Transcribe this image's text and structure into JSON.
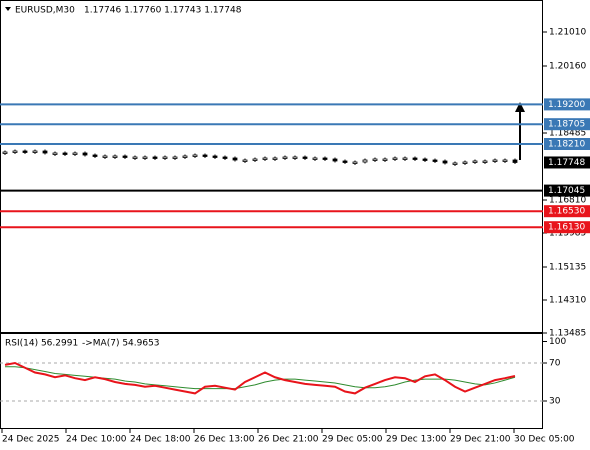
{
  "chart_data": {
    "type": "candlestick",
    "title": "EURUSD,M30",
    "ohlc": "1.17746 1.17760 1.17743 1.17748",
    "ylim": [
      1.1345,
      1.2181
    ],
    "yticks": [
      {
        "value": 1.2101,
        "label": "1.21010"
      },
      {
        "value": 1.2016,
        "label": "1.20160"
      },
      {
        "value": 1.18485,
        "label": "1.18485"
      },
      {
        "value": 1.1681,
        "label": "1.16810"
      },
      {
        "value": 1.15985,
        "label": "1.15985"
      },
      {
        "value": 1.15135,
        "label": "1.15135"
      },
      {
        "value": 1.1431,
        "label": "1.14310"
      },
      {
        "value": 1.13485,
        "label": "1.13485"
      }
    ],
    "levels": [
      {
        "value": 1.192,
        "label": "1.19200",
        "color": "#3a78b5"
      },
      {
        "value": 1.18705,
        "label": "1.18705",
        "color": "#3a78b5"
      },
      {
        "value": 1.1821,
        "label": "1.18210",
        "color": "#3a78b5"
      },
      {
        "value": 1.17045,
        "label": "1.17045",
        "color": "#000000"
      },
      {
        "value": 1.1653,
        "label": "1.16530",
        "color": "#e8141b"
      },
      {
        "value": 1.1613,
        "label": "1.16130",
        "color": "#e8141b"
      }
    ],
    "last_price": {
      "value": 1.17748,
      "label": "1.17748"
    },
    "close": [
      1.1801,
      1.18035,
      1.1801,
      1.18035,
      1.17985,
      1.17985,
      1.1796,
      1.17985,
      1.17935,
      1.1791,
      1.1791,
      1.1791,
      1.17885,
      1.17885,
      1.17885,
      1.1786,
      1.17885,
      1.17885,
      1.1791,
      1.17935,
      1.1791,
      1.17885,
      1.1786,
      1.1781,
      1.1781,
      1.17835,
      1.1786,
      1.1786,
      1.17885,
      1.17885,
      1.1786,
      1.1786,
      1.17835,
      1.17785,
      1.1776,
      1.1776,
      1.1781,
      1.17835,
      1.17835,
      1.1786,
      1.1786,
      1.17835,
      1.1781,
      1.17785,
      1.17735,
      1.17735,
      1.1776,
      1.17785,
      1.17785,
      1.1781,
      1.1781,
      1.17748
    ],
    "x_labels": [
      "24 Dec 2025",
      "24 Dec 10:00",
      "24 Dec 18:00",
      "26 Dec 13:00",
      "26 Dec 21:00",
      "29 Dec 05:00",
      "29 Dec 13:00",
      "29 Dec 21:00",
      "30 Dec 05:00"
    ],
    "rsi": {
      "title": "RSI(14) 56.2991",
      "ma_title": "->MA(7) 54.9653",
      "ylim": [
        0,
        100
      ],
      "yticks": [
        30,
        70,
        100
      ],
      "color": "#e8141b",
      "ma_color": "#2e8b2e",
      "values": [
        68,
        70,
        65,
        60,
        58,
        55,
        57,
        54,
        52,
        55,
        53,
        50,
        48,
        47,
        45,
        46,
        44,
        42,
        40,
        38,
        45,
        46,
        44,
        42,
        50,
        55,
        60,
        55,
        52,
        50,
        48,
        47,
        46,
        45,
        40,
        38,
        44,
        48,
        52,
        55,
        54,
        50,
        56,
        58,
        52,
        45,
        40,
        44,
        48,
        52,
        54,
        56.2991
      ],
      "ma_values": [
        66,
        66,
        65,
        63,
        61,
        59,
        58,
        57,
        56,
        55,
        54,
        53,
        51,
        50,
        48,
        47,
        46,
        45,
        44,
        43,
        43,
        43,
        43,
        43,
        45,
        47,
        50,
        52,
        53,
        53,
        52,
        51,
        50,
        49,
        47,
        45,
        44,
        44,
        45,
        47,
        50,
        52,
        53,
        53,
        53,
        52,
        50,
        48,
        47,
        49,
        52,
        54.9653
      ]
    }
  }
}
